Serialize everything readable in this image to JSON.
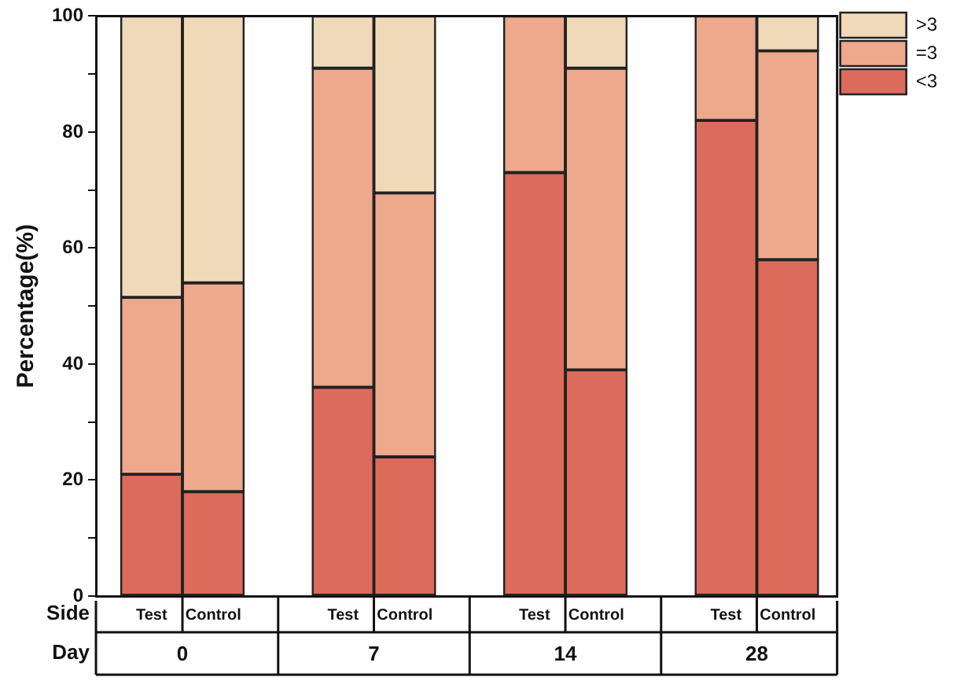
{
  "chart_data": {
    "type": "bar",
    "stacked": true,
    "ylabel": "Percentage(%)",
    "categories": [
      "Test",
      "Control",
      "Test",
      "Control",
      "Test",
      "Control",
      "Test",
      "Control"
    ],
    "series": [
      {
        "name": "<3",
        "color": "#dc6b5c",
        "values": [
          21,
          18,
          36,
          24,
          73,
          39,
          82,
          58
        ]
      },
      {
        "name": "=3",
        "color": "#eea88c",
        "values": [
          30.5,
          36,
          55,
          45.5,
          27,
          52,
          18,
          36
        ]
      },
      {
        "name": ">3",
        "color": "#f0d9b8",
        "values": [
          48.5,
          46,
          9,
          30.5,
          0,
          9,
          0,
          6
        ]
      }
    ],
    "ylim": [
      0,
      100
    ],
    "yticks": [
      0,
      {
        "value": 10,
        "label": null
      },
      20,
      {
        "value": 30,
        "label": null
      },
      40,
      {
        "value": 50,
        "label": null
      },
      60,
      {
        "value": 70,
        "label": null
      },
      80,
      {
        "value": 90,
        "label": null
      },
      100
    ],
    "annotations": [
      "Side",
      "Day",
      "0",
      "7",
      "14",
      "28"
    ],
    "legend": "top right",
    "grid": false
  }
}
